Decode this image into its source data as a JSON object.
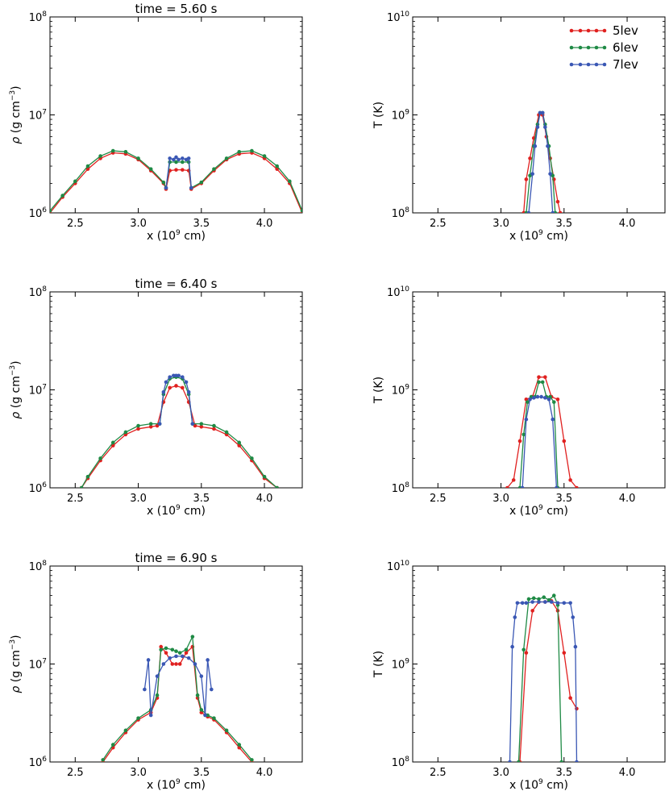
{
  "colors": {
    "5lev": "#e0201f",
    "6lev": "#1f8a45",
    "7lev": "#3a57b4"
  },
  "legend": [
    "5lev",
    "6lev",
    "7lev"
  ],
  "chart_data": [
    {
      "type": "line",
      "panel": "density",
      "title": "time = 5.60 s",
      "xlabel": "x (10^9 cm)",
      "ylabel": "ρ (g cm^-3)",
      "yscale": "log",
      "xlim": [
        2.3,
        4.3
      ],
      "ylim": [
        1000000.0,
        100000000.0
      ],
      "xticks": [
        "2.5",
        "3.0",
        "3.5",
        "4.0"
      ],
      "series": [
        {
          "name": "5lev",
          "x": [
            2.3,
            2.4,
            2.5,
            2.6,
            2.7,
            2.8,
            2.9,
            3.0,
            3.1,
            3.2,
            3.22,
            3.25,
            3.3,
            3.35,
            3.4,
            3.42,
            3.5,
            3.6,
            3.7,
            3.8,
            3.9,
            4.0,
            4.1,
            4.2,
            4.3
          ],
          "y": [
            1000000.0,
            1450000.0,
            2000000.0,
            2800000.0,
            3600000.0,
            4100000.0,
            4000000.0,
            3500000.0,
            2700000.0,
            2000000.0,
            1750000.0,
            2700000.0,
            2750000.0,
            2750000.0,
            2700000.0,
            1750000.0,
            2000000.0,
            2700000.0,
            3500000.0,
            4000000.0,
            4100000.0,
            3600000.0,
            2800000.0,
            2000000.0,
            1000000.0
          ]
        },
        {
          "name": "6lev",
          "x": [
            2.3,
            2.4,
            2.5,
            2.6,
            2.7,
            2.8,
            2.9,
            3.0,
            3.1,
            3.2,
            3.22,
            3.25,
            3.3,
            3.35,
            3.4,
            3.42,
            3.5,
            3.6,
            3.7,
            3.8,
            3.9,
            4.0,
            4.1,
            4.2,
            4.3
          ],
          "y": [
            1050000.0,
            1500000.0,
            2100000.0,
            3000000.0,
            3800000.0,
            4300000.0,
            4200000.0,
            3600000.0,
            2800000.0,
            2050000.0,
            1800000.0,
            3300000.0,
            3300000.0,
            3300000.0,
            3300000.0,
            1800000.0,
            2050000.0,
            2800000.0,
            3600000.0,
            4200000.0,
            4300000.0,
            3800000.0,
            3000000.0,
            2100000.0,
            1050000.0
          ]
        },
        {
          "name": "7lev",
          "x": [
            3.22,
            3.25,
            3.28,
            3.3,
            3.32,
            3.35,
            3.38,
            3.4,
            3.42
          ],
          "y": [
            1800000.0,
            3600000.0,
            3500000.0,
            3700000.0,
            3500000.0,
            3600000.0,
            3500000.0,
            3600000.0,
            1800000.0
          ]
        }
      ]
    },
    {
      "type": "line",
      "panel": "temperature",
      "title": "",
      "xlabel": "x (10^9 cm)",
      "ylabel": "T (K)",
      "yscale": "log",
      "xlim": [
        2.3,
        4.3
      ],
      "ylim": [
        100000000.0,
        10000000000.0
      ],
      "xticks": [
        "2.5",
        "3.0",
        "3.5",
        "4.0"
      ],
      "series": [
        {
          "name": "5lev",
          "x": [
            3.18,
            3.2,
            3.23,
            3.26,
            3.3,
            3.33,
            3.36,
            3.39,
            3.42,
            3.45,
            3.47
          ],
          "y": [
            100000000.0,
            220000000.0,
            360000000.0,
            580000000.0,
            1000000000.0,
            1000000000.0,
            600000000.0,
            360000000.0,
            220000000.0,
            130000000.0,
            100000000.0
          ]
        },
        {
          "name": "6lev",
          "x": [
            3.2,
            3.23,
            3.26,
            3.29,
            3.31,
            3.33,
            3.35,
            3.38,
            3.41,
            3.43
          ],
          "y": [
            100000000.0,
            240000000.0,
            480000000.0,
            800000000.0,
            1050000000.0,
            1050000000.0,
            800000000.0,
            480000000.0,
            240000000.0,
            100000000.0
          ]
        },
        {
          "name": "7lev",
          "x": [
            3.22,
            3.25,
            3.27,
            3.29,
            3.31,
            3.33,
            3.35,
            3.37,
            3.39,
            3.41
          ],
          "y": [
            100000000.0,
            250000000.0,
            480000000.0,
            750000000.0,
            1050000000.0,
            1050000000.0,
            750000000.0,
            480000000.0,
            250000000.0,
            100000000.0
          ]
        }
      ]
    },
    {
      "type": "line",
      "panel": "density",
      "title": "time = 6.40 s",
      "xlabel": "x (10^9 cm)",
      "ylabel": "ρ (g cm^-3)",
      "yscale": "log",
      "xlim": [
        2.3,
        4.3
      ],
      "ylim": [
        1000000.0,
        100000000.0
      ],
      "xticks": [
        "2.5",
        "3.0",
        "3.5",
        "4.0"
      ],
      "series": [
        {
          "name": "5lev",
          "x": [
            2.55,
            2.6,
            2.7,
            2.8,
            2.9,
            3.0,
            3.1,
            3.15,
            3.2,
            3.25,
            3.3,
            3.35,
            3.4,
            3.45,
            3.5,
            3.6,
            3.7,
            3.8,
            3.9,
            4.0,
            4.1
          ],
          "y": [
            1000000.0,
            1250000.0,
            1900000.0,
            2700000.0,
            3500000.0,
            4000000.0,
            4200000.0,
            4300000.0,
            7500000.0,
            10500000.0,
            11000000.0,
            10500000.0,
            7500000.0,
            4300000.0,
            4200000.0,
            4000000.0,
            3500000.0,
            2700000.0,
            1900000.0,
            1250000.0,
            1000000.0
          ]
        },
        {
          "name": "6lev",
          "x": [
            2.55,
            2.6,
            2.7,
            2.8,
            2.9,
            3.0,
            3.1,
            3.17,
            3.2,
            3.25,
            3.3,
            3.35,
            3.4,
            3.43,
            3.5,
            3.6,
            3.7,
            3.8,
            3.9,
            4.0,
            4.1
          ],
          "y": [
            1000000.0,
            1300000.0,
            2000000.0,
            2900000.0,
            3700000.0,
            4300000.0,
            4500000.0,
            4500000.0,
            9000000.0,
            13000000.0,
            13500000.0,
            13000000.0,
            9000000.0,
            4500000.0,
            4500000.0,
            4300000.0,
            3700000.0,
            2900000.0,
            2000000.0,
            1300000.0,
            1000000.0
          ]
        },
        {
          "name": "7lev",
          "x": [
            3.17,
            3.2,
            3.22,
            3.25,
            3.28,
            3.3,
            3.32,
            3.35,
            3.38,
            3.4,
            3.43
          ],
          "y": [
            4500000.0,
            9500000.0,
            12000000.0,
            13500000.0,
            14000000.0,
            14000000.0,
            14000000.0,
            13500000.0,
            12000000.0,
            9500000.0,
            4500000.0
          ]
        }
      ]
    },
    {
      "type": "line",
      "panel": "temperature",
      "title": "",
      "xlabel": "x (10^9 cm)",
      "ylabel": "T (K)",
      "yscale": "log",
      "xlim": [
        2.3,
        4.3
      ],
      "ylim": [
        100000000.0,
        10000000000.0
      ],
      "xticks": [
        "2.5",
        "3.0",
        "3.5",
        "4.0"
      ],
      "series": [
        {
          "name": "5lev",
          "x": [
            3.05,
            3.1,
            3.15,
            3.2,
            3.25,
            3.3,
            3.35,
            3.4,
            3.45,
            3.5,
            3.55,
            3.6
          ],
          "y": [
            100000000.0,
            120000000.0,
            300000000.0,
            800000000.0,
            850000000.0,
            1350000000.0,
            1350000000.0,
            850000000.0,
            800000000.0,
            300000000.0,
            120000000.0,
            100000000.0
          ]
        },
        {
          "name": "6lev",
          "x": [
            3.15,
            3.18,
            3.21,
            3.24,
            3.27,
            3.3,
            3.33,
            3.36,
            3.39,
            3.42,
            3.45
          ],
          "y": [
            100000000.0,
            350000000.0,
            750000000.0,
            850000000.0,
            850000000.0,
            1200000000.0,
            1200000000.0,
            850000000.0,
            850000000.0,
            750000000.0,
            100000000.0
          ]
        },
        {
          "name": "7lev",
          "x": [
            3.17,
            3.2,
            3.23,
            3.26,
            3.29,
            3.32,
            3.35,
            3.38,
            3.41,
            3.44
          ],
          "y": [
            100000000.0,
            500000000.0,
            800000000.0,
            830000000.0,
            850000000.0,
            850000000.0,
            830000000.0,
            800000000.0,
            500000000.0,
            100000000.0
          ]
        }
      ]
    },
    {
      "type": "line",
      "panel": "density",
      "title": "time = 6.90 s",
      "xlabel": "x (10^9 cm)",
      "ylabel": "ρ (g cm^-3)",
      "yscale": "log",
      "xlim": [
        2.3,
        4.3
      ],
      "ylim": [
        1000000.0,
        100000000.0
      ],
      "xticks": [
        "2.5",
        "3.0",
        "3.5",
        "4.0"
      ],
      "series": [
        {
          "name": "5lev",
          "x": [
            2.72,
            2.8,
            2.9,
            3.0,
            3.1,
            3.15,
            3.18,
            3.22,
            3.27,
            3.3,
            3.33,
            3.38,
            3.43,
            3.47,
            3.5,
            3.55,
            3.6,
            3.7,
            3.8,
            3.9
          ],
          "y": [
            1000000.0,
            1400000.0,
            2000000.0,
            2700000.0,
            3200000.0,
            4500000.0,
            15000000.0,
            13000000.0,
            10000000.0,
            10000000.0,
            10000000.0,
            13000000.0,
            15000000.0,
            4500000.0,
            3200000.0,
            2900000.0,
            2700000.0,
            2000000.0,
            1400000.0,
            1000000.0
          ]
        },
        {
          "name": "6lev",
          "x": [
            2.72,
            2.8,
            2.9,
            3.0,
            3.1,
            3.15,
            3.18,
            3.22,
            3.27,
            3.3,
            3.33,
            3.38,
            3.43,
            3.47,
            3.5,
            3.55,
            3.6,
            3.7,
            3.8,
            3.9
          ],
          "y": [
            1050000.0,
            1500000.0,
            2100000.0,
            2800000.0,
            3400000.0,
            4800000.0,
            14000000.0,
            14500000.0,
            14000000.0,
            13500000.0,
            13000000.0,
            14000000.0,
            19000000.0,
            4800000.0,
            3400000.0,
            3000000.0,
            2800000.0,
            2100000.0,
            1500000.0,
            1050000.0
          ]
        },
        {
          "name": "7lev",
          "x": [
            3.05,
            3.08,
            3.1,
            3.15,
            3.2,
            3.25,
            3.3,
            3.35,
            3.4,
            3.45,
            3.5,
            3.53,
            3.55,
            3.58
          ],
          "y": [
            5500000.0,
            11000000.0,
            3000000.0,
            7500000.0,
            10000000.0,
            11500000.0,
            12000000.0,
            12000000.0,
            11500000.0,
            10000000.0,
            7500000.0,
            3000000.0,
            11000000.0,
            5500000.0
          ]
        }
      ]
    },
    {
      "type": "line",
      "panel": "temperature",
      "title": "",
      "xlabel": "x (10^9 cm)",
      "ylabel": "T (K)",
      "yscale": "log",
      "xlim": [
        2.3,
        4.3
      ],
      "ylim": [
        100000000.0,
        10000000000.0
      ],
      "xticks": [
        "2.5",
        "3.0",
        "3.5",
        "4.0"
      ],
      "series": [
        {
          "name": "5lev",
          "x": [
            3.15,
            3.2,
            3.25,
            3.3,
            3.35,
            3.4,
            3.45,
            3.5,
            3.55,
            3.6
          ],
          "y": [
            100000000.0,
            1300000000.0,
            3500000000.0,
            4300000000.0,
            4300000000.0,
            4400000000.0,
            3500000000.0,
            1300000000.0,
            450000000.0,
            350000000.0
          ]
        },
        {
          "name": "6lev",
          "x": [
            3.14,
            3.18,
            3.22,
            3.26,
            3.3,
            3.34,
            3.38,
            3.42,
            3.45,
            3.48
          ],
          "y": [
            100000000.0,
            1400000000.0,
            4600000000.0,
            4700000000.0,
            4600000000.0,
            4800000000.0,
            4500000000.0,
            5000000000.0,
            4000000000.0,
            100000000.0
          ]
        },
        {
          "name": "7lev",
          "x": [
            3.07,
            3.09,
            3.11,
            3.13,
            3.17,
            3.2,
            3.25,
            3.3,
            3.35,
            3.4,
            3.45,
            3.5,
            3.55,
            3.57,
            3.59,
            3.6
          ],
          "y": [
            100000000.0,
            1500000000.0,
            3000000000.0,
            4200000000.0,
            4200000000.0,
            4200000000.0,
            4300000000.0,
            4300000000.0,
            4300000000.0,
            4300000000.0,
            4200000000.0,
            4200000000.0,
            4200000000.0,
            3000000000.0,
            1500000000.0,
            100000000.0
          ]
        }
      ]
    }
  ]
}
